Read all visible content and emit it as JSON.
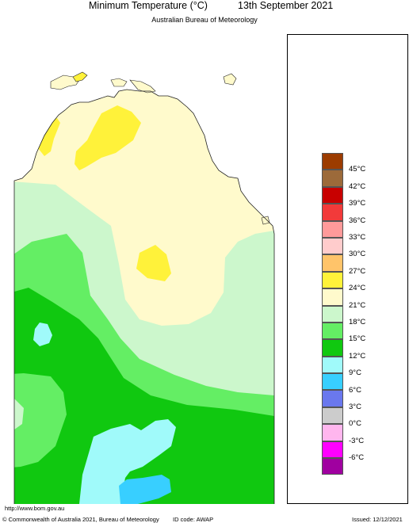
{
  "header": {
    "title": "Minimum Temperature (°C)",
    "date": "13th September 2021",
    "subtitle": "Australian Bureau of Meteorology"
  },
  "legend": {
    "colors": [
      "#9c3c00",
      "#9c6a3a",
      "#c80000",
      "#f23a3a",
      "#ff9a9a",
      "#ffcccc",
      "#ffc46a",
      "#fff23a",
      "#fffacc",
      "#ccf7cc",
      "#64ee64",
      "#10c810",
      "#a0fafa",
      "#38cfff",
      "#6a78ee",
      "#cccccc",
      "#ffb6ee",
      "#ff00ff",
      "#a000a0"
    ],
    "ticks": [
      "45°C",
      "42°C",
      "39°C",
      "36°C",
      "33°C",
      "30°C",
      "27°C",
      "24°C",
      "21°C",
      "18°C",
      "15°C",
      "12°C",
      "9°C",
      "6°C",
      "3°C",
      "0°C",
      "-3°C",
      "-6°C"
    ]
  },
  "map": {
    "region": "Northern Territory",
    "colors": {
      "ocean": "#ffffff",
      "band_24_27": "#fffacc",
      "band_27_30": "#fff23a",
      "band_21_24": "#ccf7cc",
      "band_18_21": "#64ee64",
      "band_15_18": "#10c810",
      "band_12_15": "#a0fafa",
      "band_9_12": "#38cfff",
      "outline": "#222222"
    }
  },
  "footer": {
    "url": "http://www.bom.gov.au",
    "copyright": "© Commonwealth of Australia 2021, Bureau of Meteorology",
    "id_code": "ID code: AWAP",
    "issued": "Issued: 12/12/2021"
  }
}
